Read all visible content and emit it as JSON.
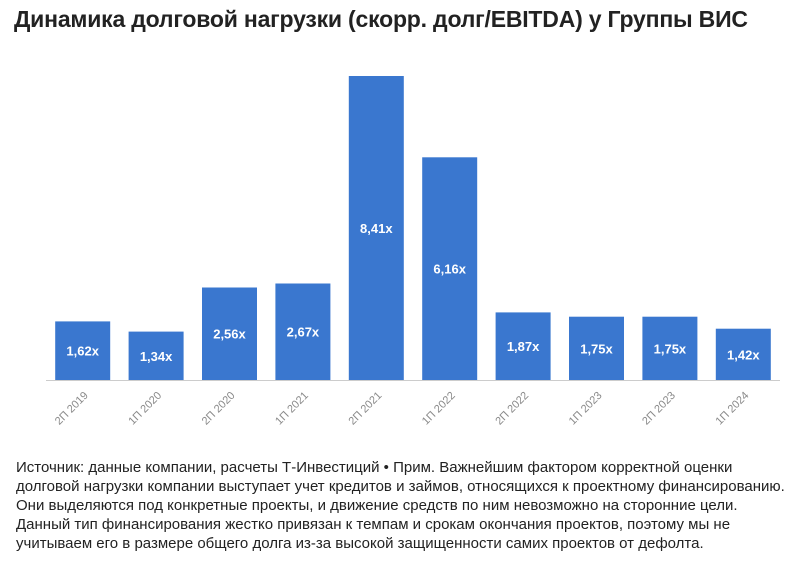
{
  "chart_data": {
    "type": "bar",
    "title": "Динамика долговой нагрузки (скорр. долг/EBITDA) у Группы ВИС",
    "categories": [
      "2П 2019",
      "1П 2020",
      "2П 2020",
      "1П 2021",
      "2П 2021",
      "1П 2022",
      "2П 2022",
      "1П 2023",
      "2П 2023",
      "1П 2024"
    ],
    "values": [
      1.62,
      1.34,
      2.56,
      2.67,
      8.41,
      6.16,
      1.87,
      1.75,
      1.75,
      1.42
    ],
    "data_labels": [
      "1,62x",
      "1,34x",
      "2,56x",
      "2,67x",
      "8,41x",
      "6,16x",
      "1,87x",
      "1,75x",
      "1,75x",
      "1,42x"
    ],
    "ylim": [
      0,
      8.41
    ],
    "grid": false,
    "legend": "none",
    "colors": {
      "bar": "#3a77cf",
      "label": "#ffffff",
      "tick": "#8a8a8a",
      "baseline": "#cccccc"
    }
  },
  "footnote": "Источник: данные компании, расчеты Т-Инвестиций • Прим. Важнейшим фактором корректной оценки долговой нагрузки компании выступает учет кредитов и займов, относящихся к проектному финансированию. Они выделяются под конкретные проекты, и движение средств по ним невозможно на сторонние цели. Данный тип финансирования жестко привязан к темпам и срокам окончания проектов, поэтому мы не учитываем его в размере общего долга из-за высокой защищенности самих проектов от дефолта."
}
